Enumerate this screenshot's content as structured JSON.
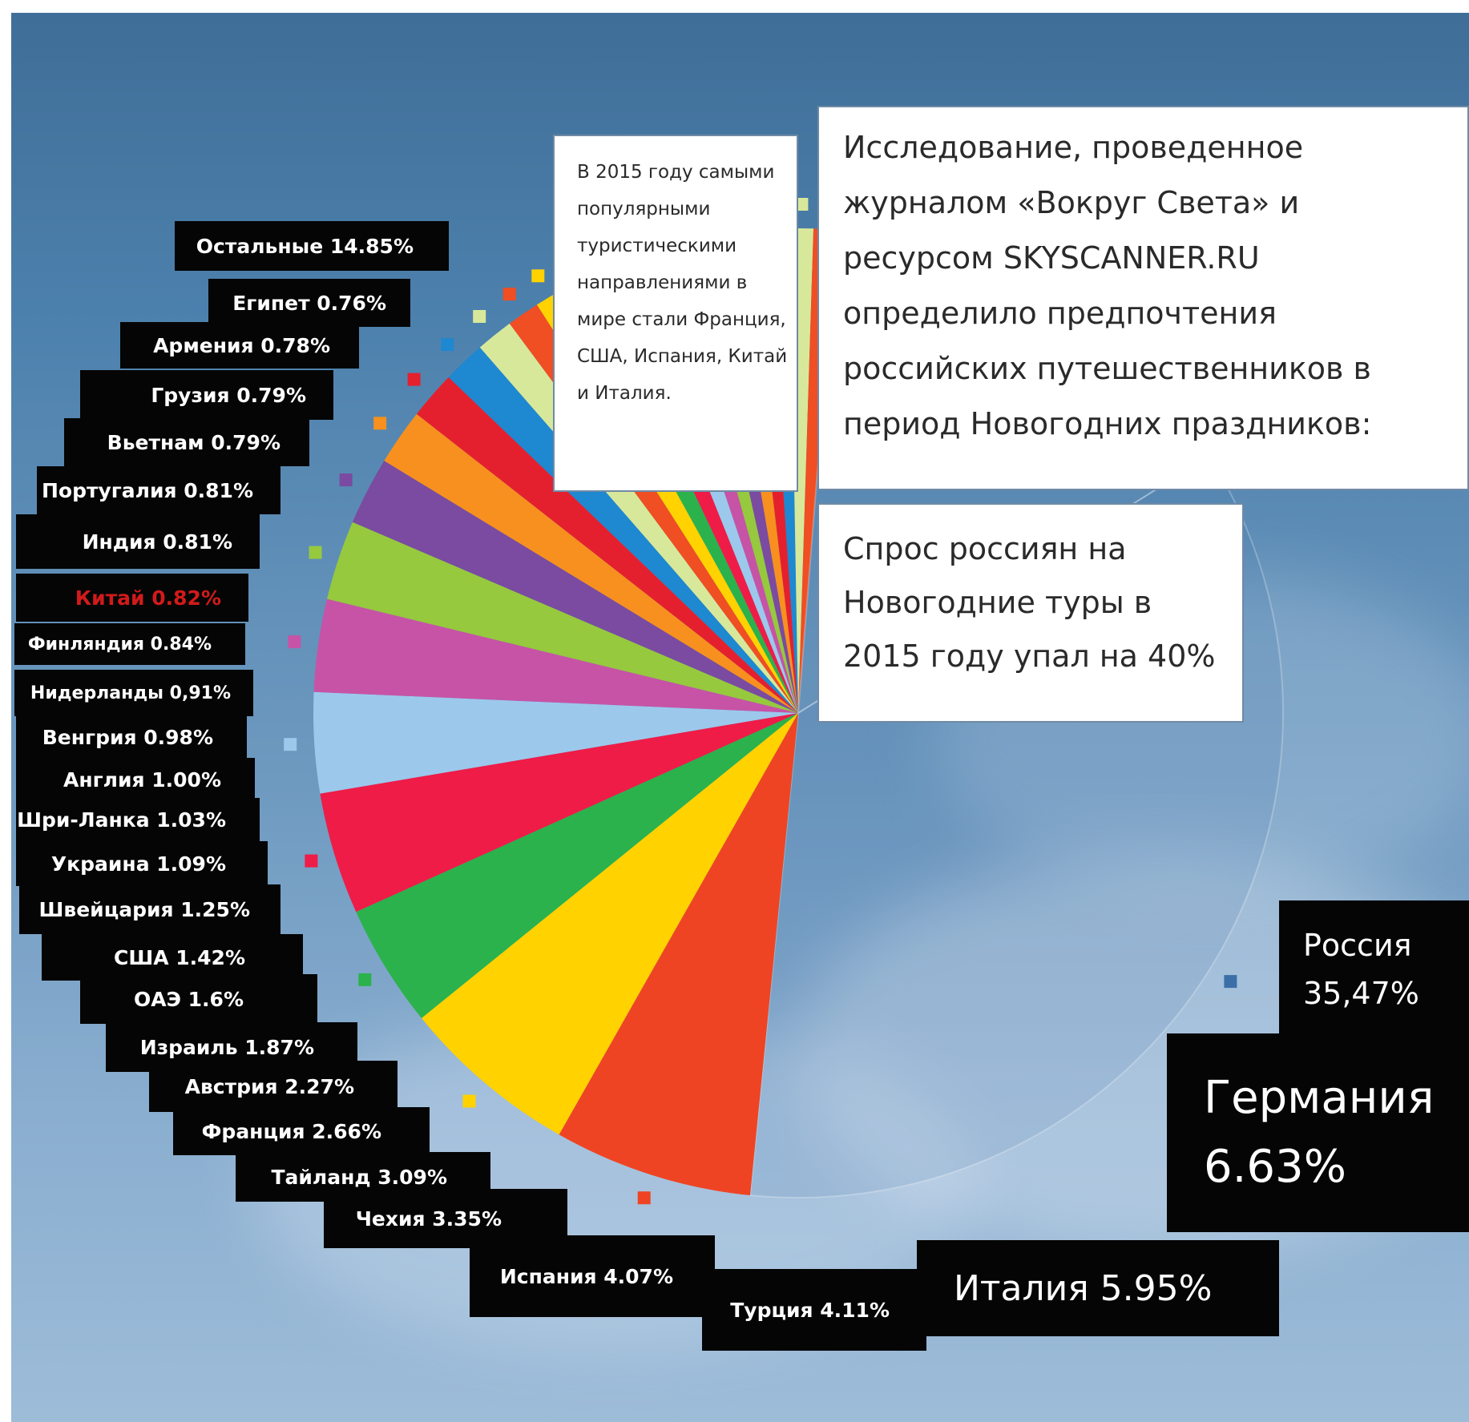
{
  "info_text": "В 2015 году самыми популярными туристическими направлениями в мире стали Франция, США, Испания, Китай и Италия.",
  "title_text": "Исследование, проведенное журналом «Вокруг Света» и ресурсом SKYSCANNER.RU определило предпочтения российских путешественников  в период Новогодних праздников:",
  "drop_text": "Спрос россиян на Новогодние туры в 2015 году упал на 40%",
  "labels": {
    "russia_name": "Россия",
    "russia_value": "35,47%",
    "germany_name": "Германия",
    "germany_value": "6.63%",
    "italy": "Италия 5.95%",
    "turkey": "Турция 4.11%",
    "spain": "Испания 4.07%",
    "czech": "Чехия 3.35%",
    "thailand": "Тайланд 3.09%",
    "france": "Франция 2.66%",
    "austria": "Австрия 2.27%",
    "israel": "Израиль 1.87%",
    "uae": "ОАЭ 1.6%",
    "usa": "США 1.42%",
    "switzerland": "Швейцария 1.25%",
    "ukraine": "Украина 1.09%",
    "srilanka": "Шри-Ланка 1.03%",
    "england": "Англия 1.00%",
    "hungary": "Венгрия 0.98%",
    "netherlands": "Нидерланды 0,91%",
    "finland": "Финляндия 0.84%",
    "china": "Китай 0.82%",
    "india": "Индия 0.81%",
    "portugal": "Португалия 0.81%",
    "vietnam": "Вьетнам 0.79%",
    "georgia": "Грузия 0.79%",
    "armenia": "Армения 0.78%",
    "egypt": "Египет 0.76%",
    "others": "Остальные 14.85%"
  },
  "colors": {
    "label_bg": "#050505",
    "label_text": "#ffffff",
    "china_text": "#d21a1a"
  },
  "chart_data": {
    "type": "pie",
    "categories": [
      "Россия",
      "Германия",
      "Италия",
      "Турция",
      "Испания",
      "Чехия",
      "Тайланд",
      "Франция",
      "Австрия",
      "Израиль",
      "ОАЭ",
      "США",
      "Швейцария",
      "Украина",
      "Шри-Ланка",
      "Англия",
      "Венгрия",
      "Нидерланды",
      "Финляндия",
      "Китай",
      "Индия",
      "Португалия",
      "Вьетнам",
      "Грузия",
      "Армения",
      "Египет",
      "Остальные"
    ],
    "values": [
      35.47,
      6.63,
      5.95,
      4.11,
      4.07,
      3.35,
      3.09,
      2.66,
      2.27,
      1.87,
      1.6,
      1.42,
      1.25,
      1.09,
      1.03,
      1.0,
      0.98,
      0.91,
      0.84,
      0.82,
      0.81,
      0.81,
      0.79,
      0.79,
      0.78,
      0.76,
      14.85
    ],
    "colors": [
      "#3b6fa8",
      "#ef4423",
      "#ffd200",
      "#2bb24c",
      "#ee1c47",
      "#9cc8ec",
      "#c753a6",
      "#96c93d",
      "#7a4ba0",
      "#f7901e",
      "#e5202e",
      "#1e88d0",
      "#d8e89a",
      "#f04e23",
      "#ffd200",
      "#2bb24c",
      "#ee1c47",
      "#9cc8ec",
      "#c753a6",
      "#96c93d",
      "#7a4ba0",
      "#f7901e",
      "#e5202e",
      "#1e88d0",
      "#d8e89a",
      "#f04e23",
      "#5d86ad"
    ]
  }
}
